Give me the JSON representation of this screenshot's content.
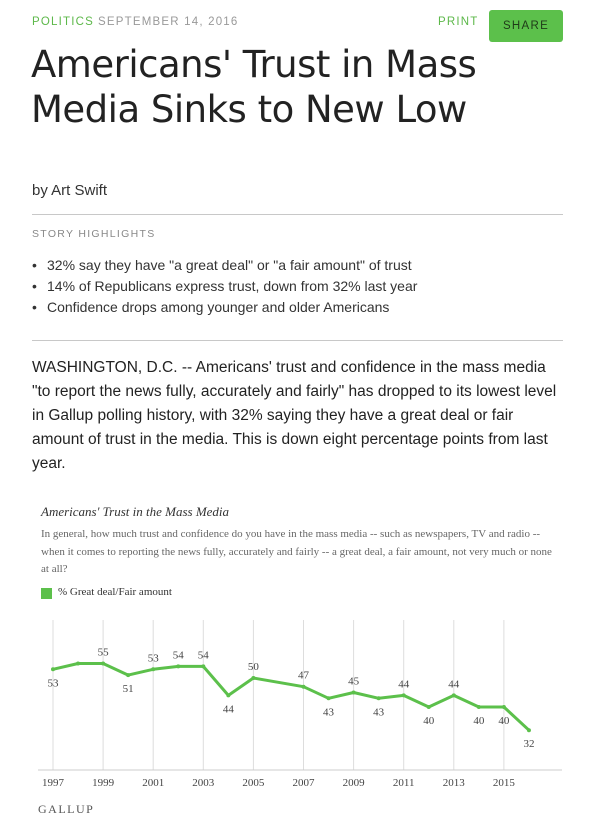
{
  "header": {
    "category": "POLITICS",
    "date": "SEPTEMBER 14, 2016",
    "print_label": "PRINT",
    "share_label": "SHARE"
  },
  "article": {
    "title_line1": "Americans' Trust in Mass",
    "title_line2": "Media Sinks to New Low",
    "byline": "by Art Swift",
    "highlights_label": "STORY HIGHLIGHTS",
    "highlights": [
      "32% say they have \"a great deal\" or \"a fair amount\" of trust",
      "14% of Republicans express trust, down from 32% last year",
      "Confidence drops among younger and older Americans"
    ],
    "lede": "WASHINGTON, D.C. -- Americans' trust and confidence in the mass media \"to report the news fully, accurately and fairly\" has dropped to its lowest level in Gallup polling history, with 32% saying they have a great deal or fair amount of trust in the media. This is down eight percentage points from last year."
  },
  "chart_data": {
    "type": "line",
    "title": "Americans' Trust in the Mass Media",
    "subtitle": "In general, how much trust and confidence do you have in the mass media -- such as newspapers, TV and radio -- when it comes to reporting the news fully, accurately and fairly -- a great deal, a fair amount, not very much or none at all?",
    "series": [
      {
        "name": "% Great deal/Fair amount",
        "color": "#5cc04b",
        "x": [
          1997,
          1998,
          1999,
          2000,
          2001,
          2002,
          2003,
          2004,
          2005,
          2007,
          2008,
          2009,
          2010,
          2011,
          2012,
          2013,
          2014,
          2015,
          2016
        ],
        "values": [
          53,
          55,
          55,
          51,
          53,
          54,
          54,
          44,
          50,
          47,
          43,
          45,
          43,
          44,
          40,
          44,
          40,
          40,
          32
        ]
      }
    ],
    "labels": [
      {
        "x": 1997,
        "value": 53,
        "pos": "below"
      },
      {
        "x": 1999,
        "value": 55,
        "pos": "above"
      },
      {
        "x": 2000,
        "value": 51,
        "pos": "below"
      },
      {
        "x": 2001,
        "value": 53,
        "pos": "above"
      },
      {
        "x": 2002,
        "value": 54,
        "pos": "above"
      },
      {
        "x": 2003,
        "value": 54,
        "pos": "above"
      },
      {
        "x": 2004,
        "value": 44,
        "pos": "below"
      },
      {
        "x": 2005,
        "value": 50,
        "pos": "above"
      },
      {
        "x": 2007,
        "value": 47,
        "pos": "above"
      },
      {
        "x": 2008,
        "value": 43,
        "pos": "below"
      },
      {
        "x": 2009,
        "value": 45,
        "pos": "above"
      },
      {
        "x": 2010,
        "value": 43,
        "pos": "below"
      },
      {
        "x": 2011,
        "value": 44,
        "pos": "above"
      },
      {
        "x": 2012,
        "value": 40,
        "pos": "below"
      },
      {
        "x": 2013,
        "value": 44,
        "pos": "above"
      },
      {
        "x": 2014,
        "value": 40,
        "pos": "below"
      },
      {
        "x": 2015,
        "value": 40,
        "pos": "below"
      },
      {
        "x": 2016,
        "value": 32,
        "pos": "below"
      }
    ],
    "x_ticks": [
      "1997",
      "1999",
      "2001",
      "2003",
      "2005",
      "2007",
      "2009",
      "2011",
      "2013",
      "2015"
    ],
    "xlim": [
      1996,
      2017
    ],
    "ylim": [
      20,
      70
    ],
    "grid": "vertical",
    "source": "GALLUP"
  }
}
